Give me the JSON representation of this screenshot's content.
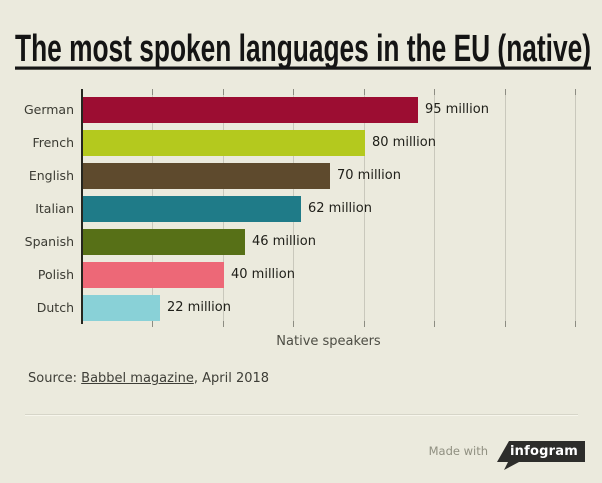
{
  "title": "The most spoken languages in the EU (native)",
  "chart_data": {
    "type": "bar",
    "orientation": "horizontal",
    "title": "The most spoken languages in the EU (native)",
    "categories": [
      "German",
      "French",
      "English",
      "Italian",
      "Spanish",
      "Polish",
      "Dutch"
    ],
    "values": [
      95,
      80,
      70,
      62,
      46,
      40,
      22
    ],
    "value_labels": [
      "95 million",
      "80 million",
      "70 million",
      "62 million",
      "46 million",
      "40 million",
      "22 million"
    ],
    "bar_colors": [
      "#9c0d32",
      "#b4c91e",
      "#5e4a2d",
      "#1f7b88",
      "#577017",
      "#ed6877",
      "#89d1d7"
    ],
    "xlabel": "Native speakers",
    "ylabel": "",
    "xlim": [
      0,
      140
    ],
    "gridline_step": 20,
    "grid": true,
    "legend": false,
    "tick_labels_shown": false
  },
  "source": {
    "prefix": "Source: ",
    "link": "Babbel magazine",
    "suffix": ", April 2018"
  },
  "credit": {
    "made_with": "Made with",
    "brand": "infogram"
  },
  "colors": {
    "background": "#ebeadd",
    "axis": "#26261f",
    "gridline": "#c9c8bc",
    "tick": "#8c8c82",
    "title": "#141414",
    "badge_bg": "#2d2d2b",
    "badge_text": "#ffffff"
  }
}
